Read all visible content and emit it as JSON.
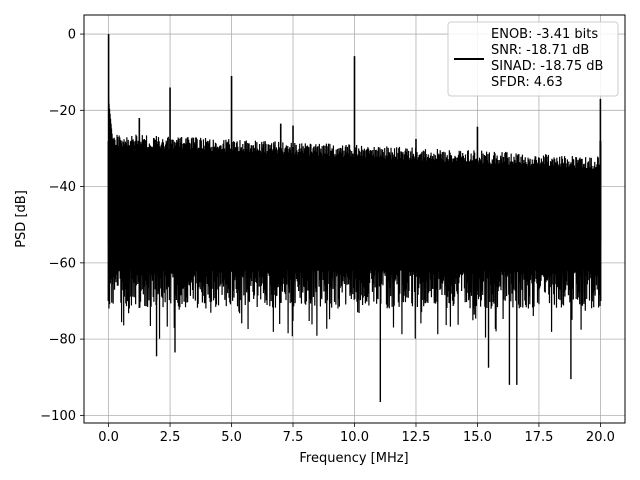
{
  "chart_data": {
    "type": "line",
    "title": "",
    "xlabel": "Frequency [MHz]",
    "ylabel": "PSD [dB]",
    "xlim": [
      -1.0,
      21.0
    ],
    "ylim": [
      -102,
      5
    ],
    "xticks": [
      0.0,
      2.5,
      5.0,
      7.5,
      10.0,
      12.5,
      15.0,
      17.5,
      20.0
    ],
    "xtick_labels": [
      "0.0",
      "2.5",
      "5.0",
      "7.5",
      "10.0",
      "12.5",
      "15.0",
      "17.5",
      "20.0"
    ],
    "yticks": [
      0,
      -20,
      -40,
      -60,
      -80,
      -100
    ],
    "ytick_labels": [
      "0",
      "−20",
      "−40",
      "−60",
      "−80",
      "−100"
    ],
    "grid": true,
    "legend_position": "top-right",
    "line_color": "#000000",
    "series": [
      {
        "name": "",
        "noise_band_db": {
          "upper_start": -26,
          "upper_end": -32,
          "lower_typical": -70,
          "lower_min": -97
        },
        "spikes": [
          {
            "x": 0.0,
            "y": 0.0
          },
          {
            "x": 1.25,
            "y": -22
          },
          {
            "x": 2.5,
            "y": -14
          },
          {
            "x": 5.0,
            "y": -11
          },
          {
            "x": 7.0,
            "y": -23.5
          },
          {
            "x": 7.5,
            "y": -24
          },
          {
            "x": 10.0,
            "y": -5.8
          },
          {
            "x": 12.5,
            "y": -27.5
          },
          {
            "x": 15.0,
            "y": -24.3
          },
          {
            "x": 20.0,
            "y": -17
          }
        ],
        "dips": [
          {
            "x": 1.95,
            "y": -84.5
          },
          {
            "x": 2.7,
            "y": -83.5
          },
          {
            "x": 11.05,
            "y": -96.5
          },
          {
            "x": 15.45,
            "y": -87.5
          },
          {
            "x": 16.3,
            "y": -92
          },
          {
            "x": 16.6,
            "y": -92
          },
          {
            "x": 18.8,
            "y": -90.5
          }
        ]
      }
    ],
    "legend_lines": [
      "ENOB: -3.41 bits",
      "SNR: -18.71 dB",
      "SINAD: -18.75 dB",
      "SFDR: 4.63"
    ]
  }
}
